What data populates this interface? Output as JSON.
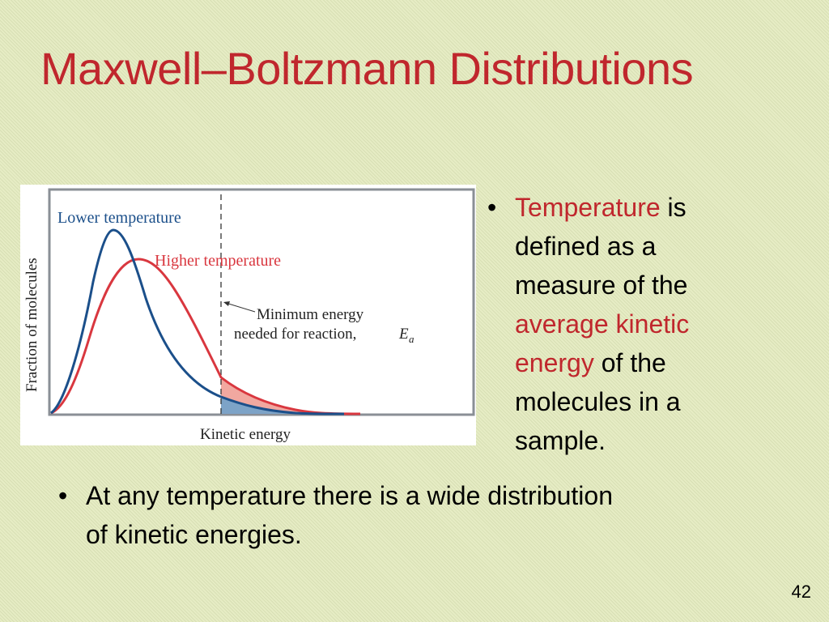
{
  "slide": {
    "title": "Maxwell–Boltzmann Distributions",
    "page_number": "42"
  },
  "figure": {
    "y_axis_label": "Fraction of molecules",
    "x_axis_label": "Kinetic energy",
    "lower_temp_label": "Lower temperature",
    "higher_temp_label": "Higher temperature",
    "annotation_line1": "Minimum energy",
    "annotation_line2": "needed for reaction,",
    "annotation_symbol": "E",
    "annotation_subscript": "a",
    "colors": {
      "lower_temperature": "#1b4f8a",
      "higher_temperature": "#d9373f",
      "lower_fill": "#7da3c7",
      "higher_fill": "#f1a8a0"
    }
  },
  "bullets": {
    "right": {
      "bullet": "•",
      "part1_red": "Temperature",
      "part2": " is defined as a measure of the ",
      "part3_red": "average kinetic energy",
      "part4": " of the molecules in a sample."
    },
    "bottom": {
      "bullet": "•",
      "text": "At any temperature there is a wide distribution of kinetic energies."
    }
  }
}
